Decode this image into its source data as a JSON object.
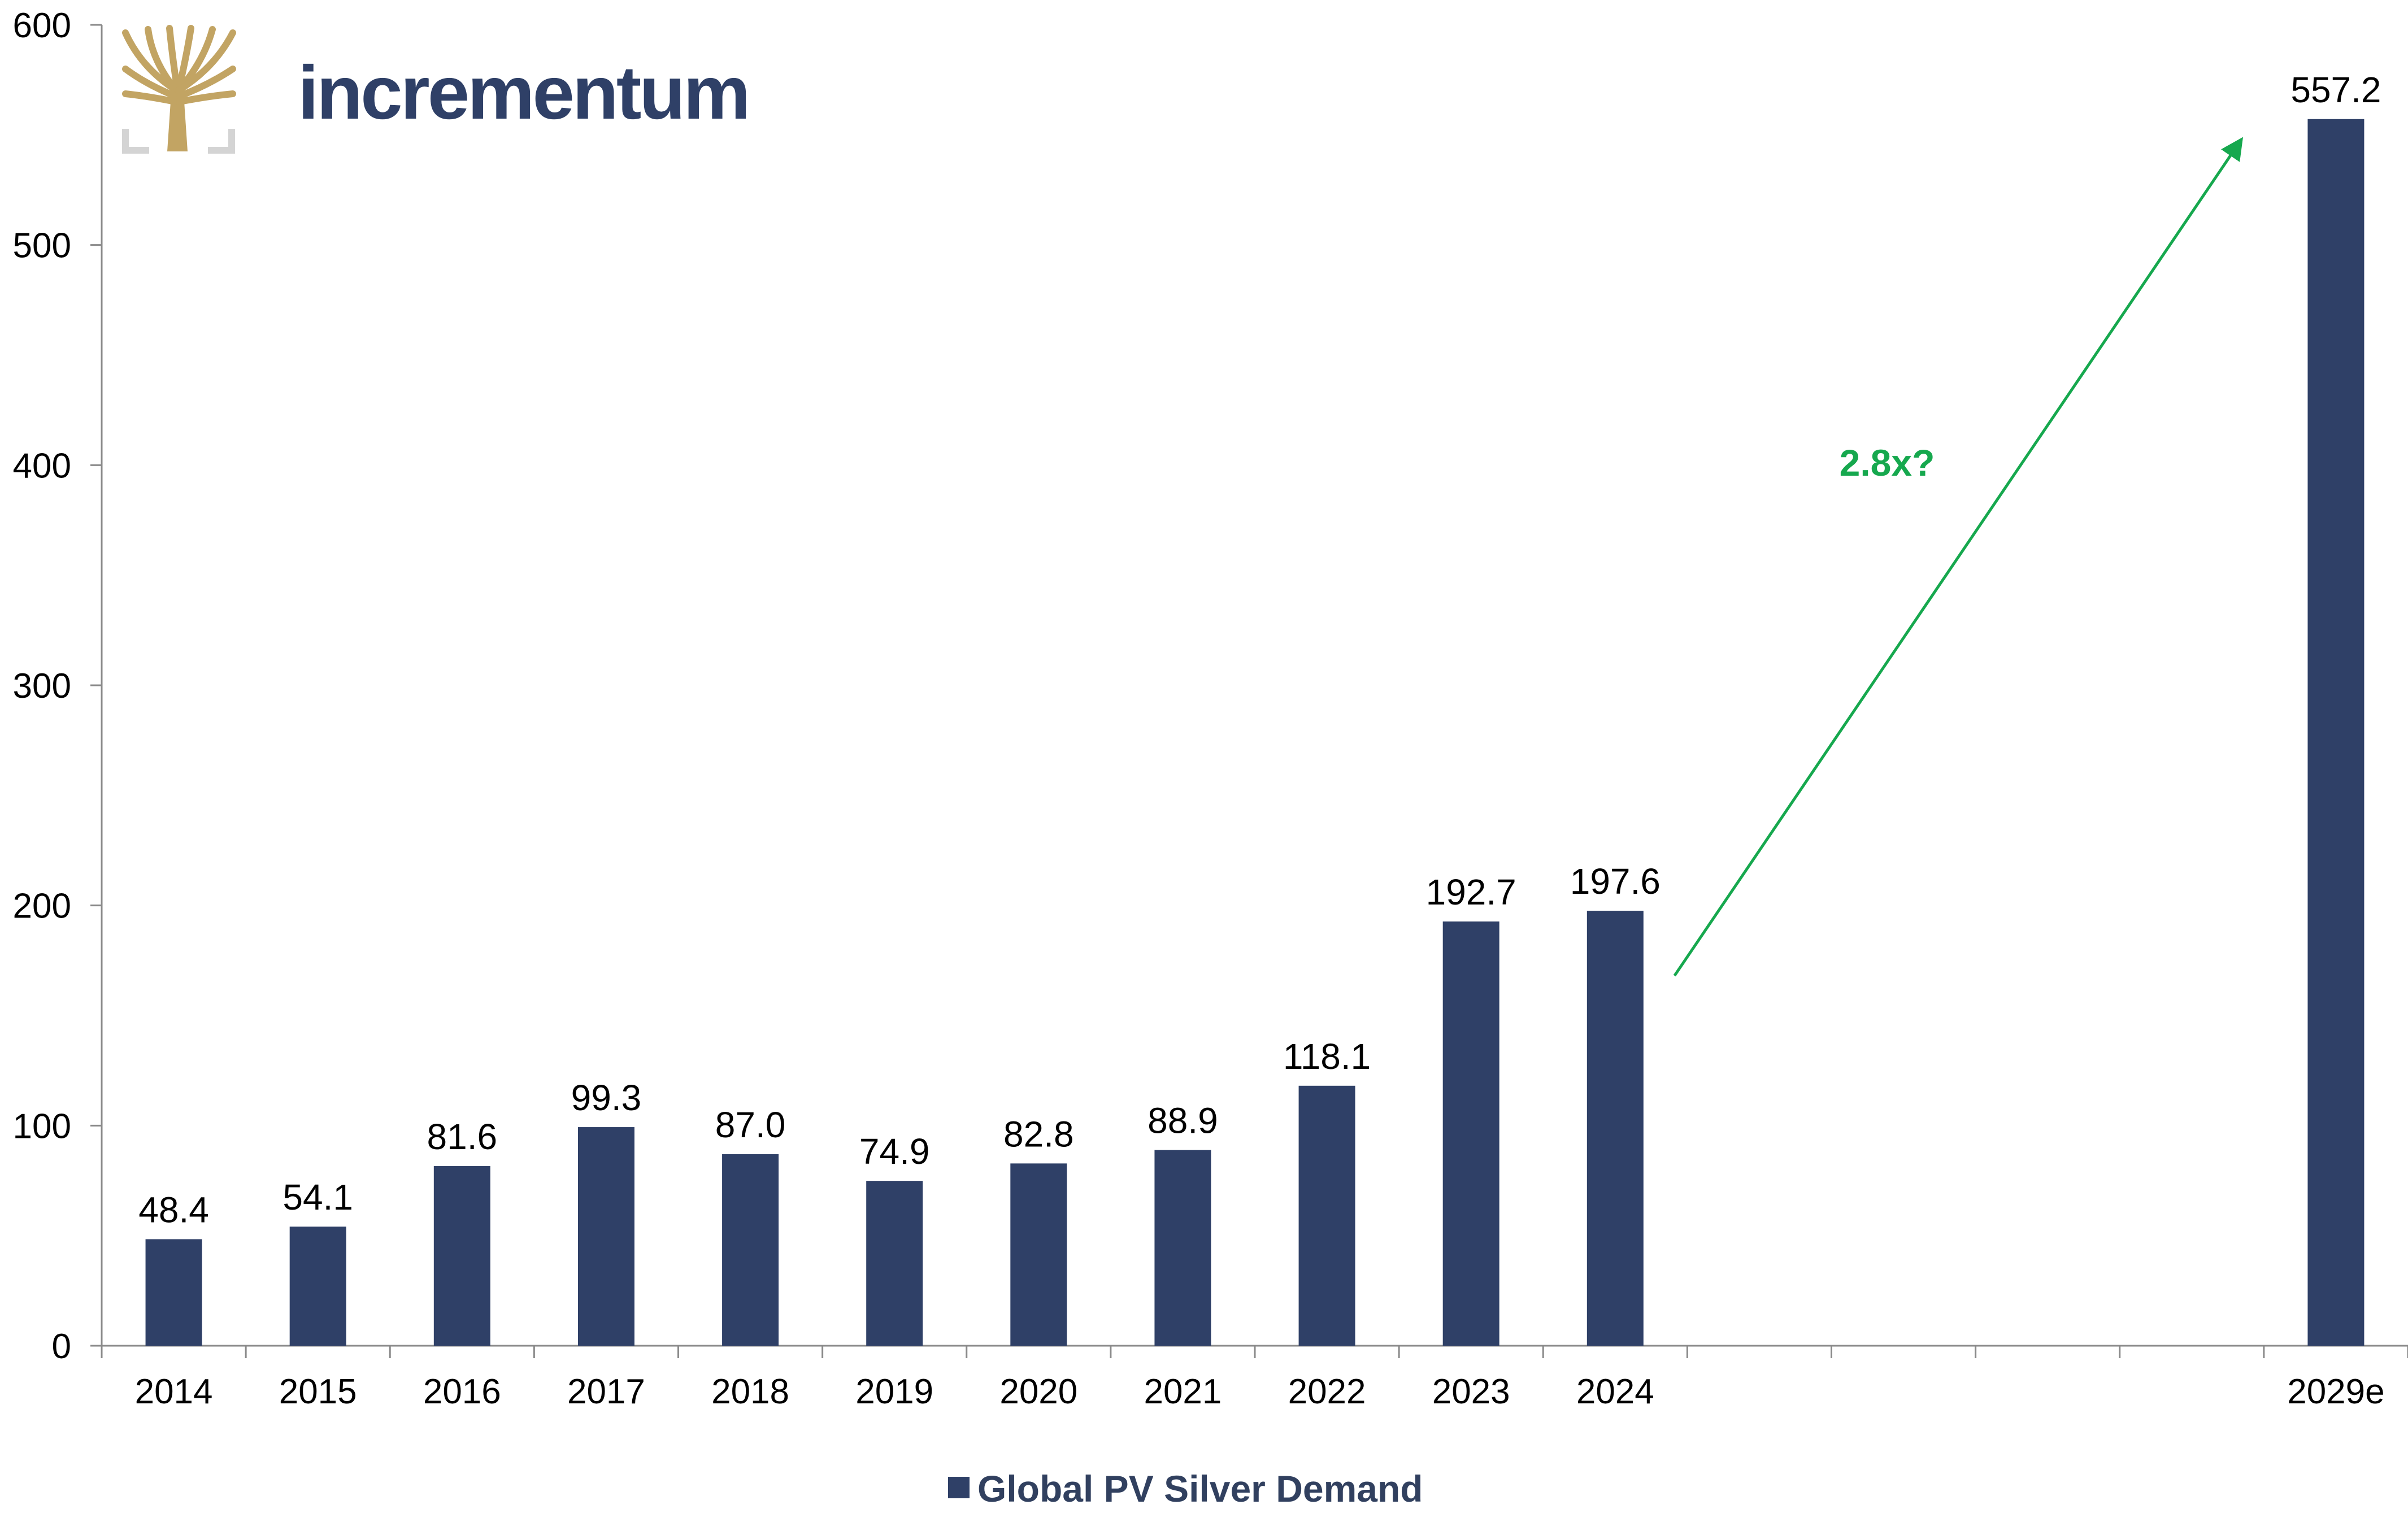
{
  "logo": {
    "wordmark": "incrementum",
    "emblem_icon": "tree-icon",
    "wordmark_color": "#2f4067",
    "emblem_color": "#c2a463"
  },
  "chart_data": {
    "type": "bar",
    "categories": [
      "2014",
      "2015",
      "2016",
      "2017",
      "2018",
      "2019",
      "2020",
      "2021",
      "2022",
      "2023",
      "2024",
      "",
      "",
      "",
      "",
      "2029e"
    ],
    "series": [
      {
        "name": "Global PV Silver Demand",
        "values": [
          48.4,
          54.1,
          81.6,
          99.3,
          87.0,
          74.9,
          82.8,
          88.9,
          118.1,
          192.7,
          197.6,
          null,
          null,
          null,
          null,
          557.2
        ],
        "data_labels": [
          "48.4",
          "54.1",
          "81.6",
          "99.3",
          "87.0",
          "74.9",
          "82.8",
          "88.9",
          "118.1",
          "192.7",
          "197.6",
          "",
          "",
          "",
          "",
          "557.2"
        ],
        "color": "#2f4067"
      }
    ],
    "ylim": [
      0,
      600
    ],
    "yticks": [
      0,
      100,
      200,
      300,
      400,
      500,
      600
    ],
    "grid": false,
    "legend": "bottom-center",
    "title": "",
    "xlabel": "",
    "ylabel": "",
    "annotation": {
      "text": "2.8x?",
      "color": "#16a84e",
      "from_category": "2024",
      "to_category": "2029e"
    }
  }
}
